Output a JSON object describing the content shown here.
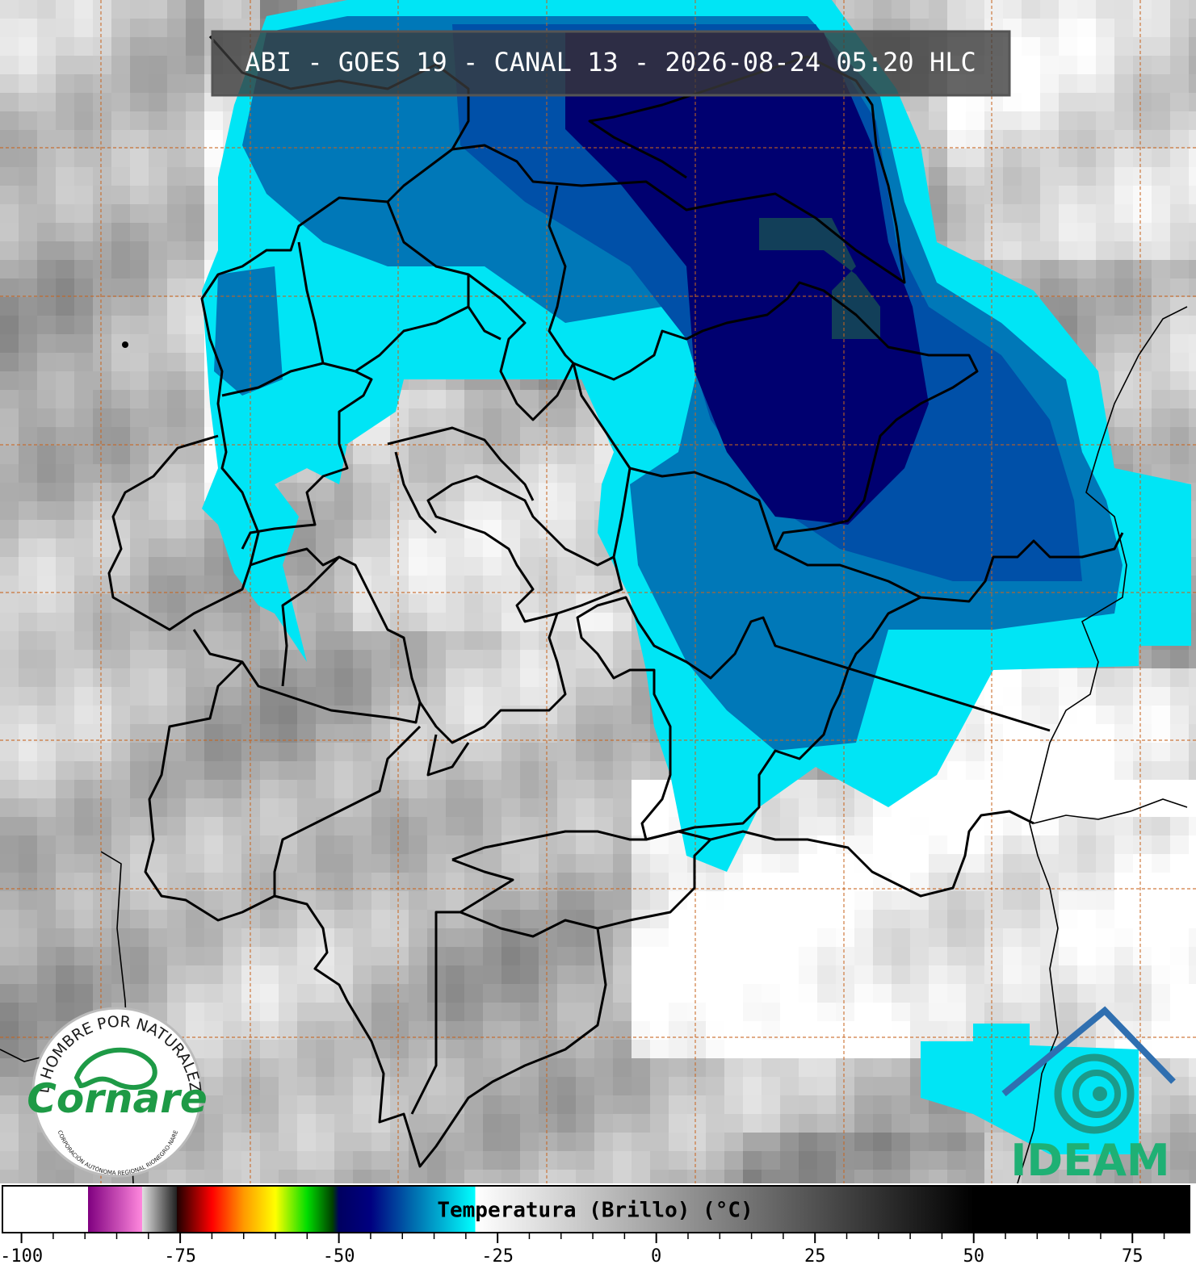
{
  "title": "ABI - GOES 19 - CANAL 13 - 2026-08-24 05:20 HLC",
  "colorbar": {
    "label": "Temperatura (Brillo) (°C)",
    "xlim": [
      -103,
      84
    ],
    "xticks": [
      -100,
      -75,
      -50,
      -25,
      0,
      25,
      50,
      75
    ],
    "minor_ticks": [
      -95,
      -90,
      -85,
      -80,
      -70,
      -65,
      -60,
      -55,
      -45,
      -40,
      -35,
      -30,
      -20,
      -15,
      -10,
      -5,
      5,
      10,
      15,
      20,
      30,
      35,
      40,
      45,
      55,
      60,
      65,
      70,
      80
    ],
    "stops": [
      {
        "value": -103,
        "color": "#ffffff"
      },
      {
        "value": -89.5,
        "color": "#ffffff"
      },
      {
        "value": -89.5,
        "color": "#800080"
      },
      {
        "value": -81,
        "color": "#ff88dd"
      },
      {
        "value": -81,
        "color": "#e0e0e0"
      },
      {
        "value": -75.5,
        "color": "#202020"
      },
      {
        "value": -75.5,
        "color": "#200000"
      },
      {
        "value": -70,
        "color": "#ff0000"
      },
      {
        "value": -65,
        "color": "#ff9900"
      },
      {
        "value": -60,
        "color": "#ffff00"
      },
      {
        "value": -55,
        "color": "#00dd00"
      },
      {
        "value": -51,
        "color": "#004000"
      },
      {
        "value": -50,
        "color": "#000060"
      },
      {
        "value": -45,
        "color": "#000080"
      },
      {
        "value": -38,
        "color": "#0070b0"
      },
      {
        "value": -28.5,
        "color": "#00ffff"
      },
      {
        "value": -28.5,
        "color": "#ffffff"
      },
      {
        "value": 50,
        "color": "#000000"
      },
      {
        "value": 84,
        "color": "#000000"
      }
    ]
  },
  "logos": {
    "cornare": {
      "motto": "EL HOMBRE POR NATURALEZA",
      "name": "Cornare",
      "subtitle": "CORPORACIÓN AUTÓNOMA REGIONAL RIONEGRO-NARE"
    },
    "ideam": {
      "name": "IDEAM"
    }
  }
}
